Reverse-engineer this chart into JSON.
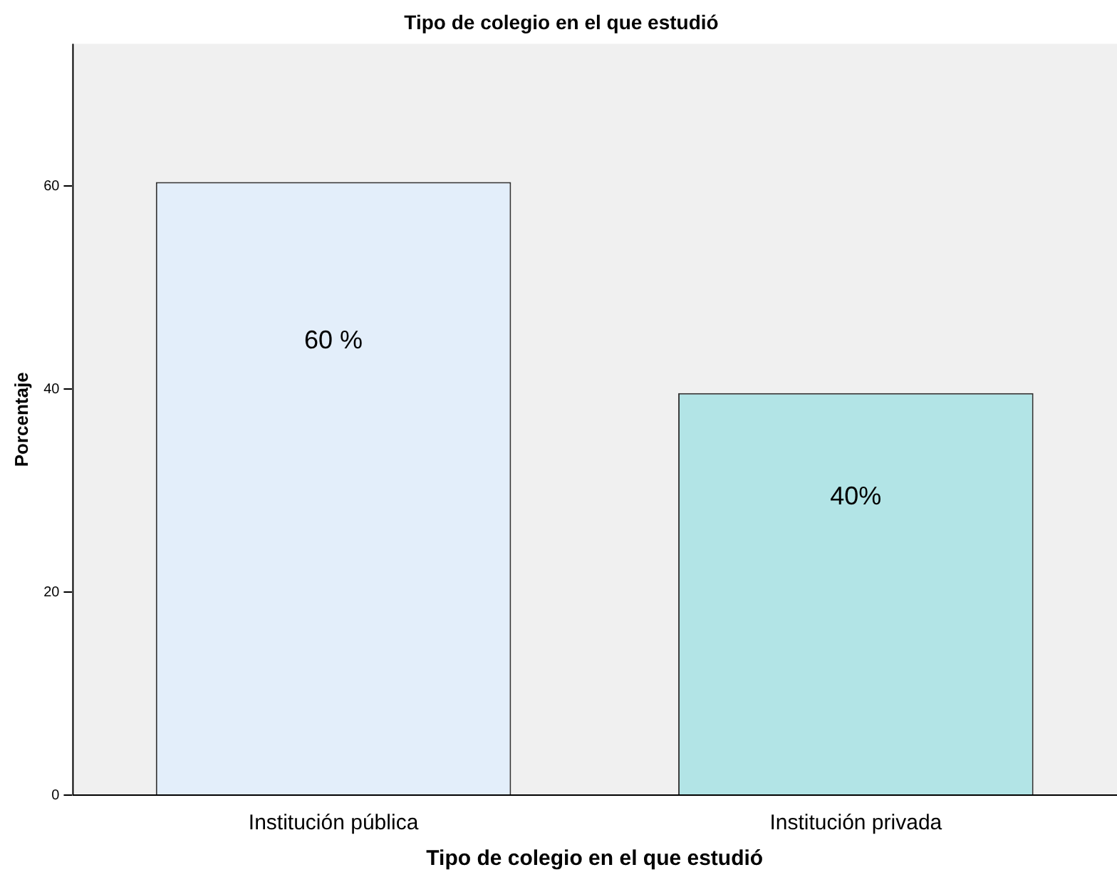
{
  "chart_data": {
    "type": "bar",
    "title": "Tipo de colegio en el que estudió",
    "xlabel": "Tipo de colegio en el que estudió",
    "ylabel": "Porcentaje",
    "categories": [
      "Institución pública",
      "Institución privada"
    ],
    "values": [
      60.4,
      39.6
    ],
    "colors": [
      "#e3eefa",
      "#b2e4e6"
    ],
    "value_labels": [
      "60 %",
      "40%"
    ],
    "ylim": [
      0,
      74
    ],
    "yticks": [
      0,
      20,
      40,
      60
    ],
    "grid": false,
    "legend": false
  }
}
